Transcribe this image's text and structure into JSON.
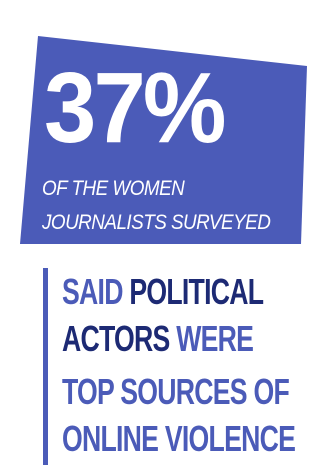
{
  "colors": {
    "panel": "#4b5bb8",
    "text_light": "#ffffff",
    "text_blue": "#4b5bb8",
    "text_dark": "#1d2a74",
    "accent_bar": "#4b5bb8"
  },
  "stat": {
    "value": "37%",
    "line_1": "OF THE WOMEN",
    "line_2": "JOURNALISTS SURVEYED"
  },
  "statement": {
    "line_1_a": "SAID ",
    "line_1_b": "POLITICAL",
    "line_2_a": "ACTORS",
    "line_2_b": " WERE",
    "line_3": "TOP SOURCES OF",
    "line_4": "ONLINE VIOLENCE"
  }
}
